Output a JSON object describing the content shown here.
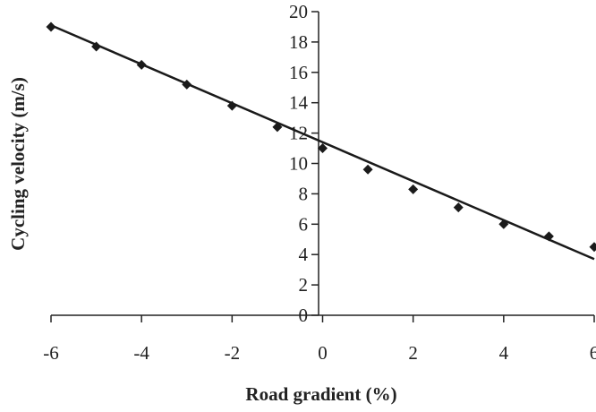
{
  "chart_data": {
    "type": "scatter",
    "title": "",
    "xlabel": "Road gradient (%)",
    "ylabel": "Cycling velocity (m/s)",
    "xlim": [
      -6,
      6
    ],
    "ylim": [
      0,
      20
    ],
    "x_ticks": [
      -6,
      -4,
      -2,
      0,
      2,
      4,
      6
    ],
    "y_ticks": [
      0,
      2,
      4,
      6,
      8,
      10,
      12,
      14,
      16,
      18,
      20
    ],
    "grid": false,
    "legend": "none",
    "marker": "diamond",
    "color": "#1a1a1a",
    "series": [
      {
        "x": [
          -6,
          -5,
          -4,
          -3,
          -2,
          -1,
          0,
          1,
          2,
          3,
          4,
          5,
          6
        ],
        "y": [
          19.0,
          17.7,
          16.5,
          15.2,
          13.8,
          12.4,
          11.0,
          9.6,
          8.3,
          7.1,
          6.0,
          5.2,
          4.5
        ]
      }
    ],
    "trendline": {
      "x": [
        -6,
        6
      ],
      "y": [
        19.1,
        3.7
      ]
    }
  }
}
